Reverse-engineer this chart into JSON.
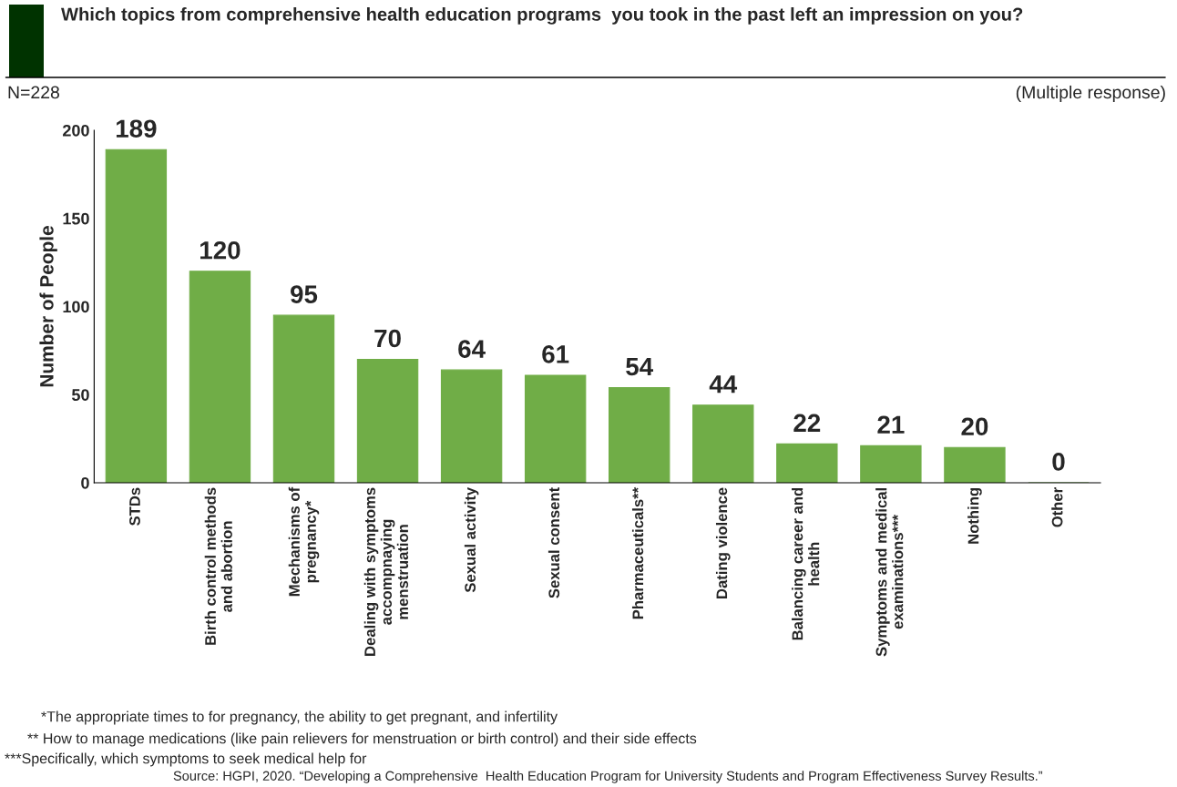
{
  "chart_data": {
    "type": "bar",
    "title": "Which topics from comprehensive health education programs  you took in the past left an impression on you?",
    "ylabel": "Number of People",
    "categories": [
      "STDs",
      "Birth control methods\nand abortion",
      "Mechanisms of\npregnancy*",
      "Dealing with symptoms\naccompnaying\nmenstruation",
      "Sexual activity",
      "Sexual consent",
      "Pharmaceuticals**",
      "Dating violence",
      "Balancing career and\nhealth",
      "Symptoms and medical\nexaminations***",
      "Nothing",
      "Other"
    ],
    "values": [
      189,
      120,
      95,
      70,
      64,
      61,
      54,
      44,
      22,
      21,
      20,
      0
    ],
    "color": "#70ad47",
    "ylim": [
      0,
      200
    ],
    "yticks": [
      0,
      50,
      100,
      150,
      200
    ],
    "data_labels": true,
    "grid": false,
    "legend": false,
    "annotations": [
      "N=228",
      "(Multiple response)",
      "*The appropriate times to for pregnancy, the ability to get pregnant, and infertility",
      "** How to manage medications (like pain relievers for menstruation or birth control) and their side effects",
      "***Specifically, which symptoms to seek medical help for",
      "Source: HGPI, 2020. “Developing a Comprehensive  Health Education Program for University Students and Program Effectiveness Survey Results.”"
    ]
  }
}
